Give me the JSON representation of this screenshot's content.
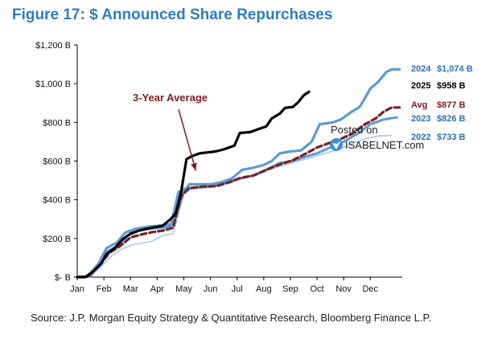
{
  "title": "Figure 17: $ Announced Share Repurchases",
  "source": "Source: J.P. Morgan Equity Strategy & Quantitative Research, Bloomberg Finance L.P.",
  "watermark": {
    "line1": "Posted on",
    "line2": "ISABELNET.com"
  },
  "colors": {
    "y2022": "#a9cfee",
    "y2023": "#5b9bd5",
    "y2024": "#5b9bd5",
    "y2025": "#000000",
    "avg": "#7b2020",
    "label_blue": "#2f6fb5",
    "annotation": "#7b2020",
    "axis": "#000000"
  },
  "chart_data": {
    "type": "line",
    "title": "Figure 17: $ Announced Share Repurchases",
    "xlabel": "",
    "ylabel": "",
    "x_ticks": [
      "Jan",
      "Feb",
      "Mar",
      "Apr",
      "May",
      "Jun",
      "Jul",
      "Aug",
      "Sep",
      "Oct",
      "Nov",
      "Dec"
    ],
    "y_ticks": [
      "$- B",
      "$200 B",
      "$400 B",
      "$600 B",
      "$800 B",
      "$1,000 B",
      "$1,200 B"
    ],
    "xlim": [
      0,
      12.2
    ],
    "ylim": [
      0,
      1200
    ],
    "grid": false,
    "annotation": {
      "text": "3-Year Average",
      "arrow_to": [
        4.45,
        550
      ]
    },
    "series": [
      {
        "key": "y2022",
        "name": "2022",
        "year": "2022",
        "value_label": "$733 B",
        "style": "thin",
        "points": [
          [
            0,
            0
          ],
          [
            0.4,
            2
          ],
          [
            0.8,
            40
          ],
          [
            1.2,
            100
          ],
          [
            1.6,
            140
          ],
          [
            2.0,
            165
          ],
          [
            2.4,
            175
          ],
          [
            2.8,
            185
          ],
          [
            3.2,
            215
          ],
          [
            3.6,
            225
          ],
          [
            4.0,
            430
          ],
          [
            4.3,
            455
          ],
          [
            4.8,
            460
          ],
          [
            5.3,
            470
          ],
          [
            5.8,
            490
          ],
          [
            6.2,
            510
          ],
          [
            6.8,
            530
          ],
          [
            7.3,
            560
          ],
          [
            7.8,
            580
          ],
          [
            8.3,
            600
          ],
          [
            8.8,
            620
          ],
          [
            9.3,
            640
          ],
          [
            9.8,
            660
          ],
          [
            10.3,
            690
          ],
          [
            10.8,
            715
          ],
          [
            11.3,
            730
          ],
          [
            11.8,
            733
          ]
        ]
      },
      {
        "key": "y2023",
        "name": "2023",
        "year": "2023",
        "value_label": "$826 B",
        "style": "normal",
        "points": [
          [
            0,
            0
          ],
          [
            0.5,
            5
          ],
          [
            0.8,
            60
          ],
          [
            1.1,
            130
          ],
          [
            1.5,
            160
          ],
          [
            1.9,
            215
          ],
          [
            2.3,
            240
          ],
          [
            2.7,
            250
          ],
          [
            3.1,
            255
          ],
          [
            3.5,
            260
          ],
          [
            3.8,
            440
          ],
          [
            4.1,
            460
          ],
          [
            4.6,
            465
          ],
          [
            5.1,
            475
          ],
          [
            5.6,
            490
          ],
          [
            6.1,
            510
          ],
          [
            6.6,
            525
          ],
          [
            7.1,
            555
          ],
          [
            7.6,
            590
          ],
          [
            8.1,
            600
          ],
          [
            8.5,
            620
          ],
          [
            9.0,
            640
          ],
          [
            9.5,
            670
          ],
          [
            10.0,
            700
          ],
          [
            10.5,
            740
          ],
          [
            11.0,
            790
          ],
          [
            11.5,
            815
          ],
          [
            12.0,
            826
          ]
        ]
      },
      {
        "key": "y2024",
        "name": "2024",
        "year": "2024",
        "value_label": "$1,074 B",
        "style": "thick",
        "points": [
          [
            0,
            0
          ],
          [
            0.4,
            5
          ],
          [
            0.8,
            70
          ],
          [
            1.1,
            150
          ],
          [
            1.5,
            180
          ],
          [
            1.8,
            230
          ],
          [
            2.2,
            250
          ],
          [
            2.6,
            260
          ],
          [
            3.0,
            265
          ],
          [
            3.3,
            270
          ],
          [
            3.6,
            275
          ],
          [
            4.0,
            440
          ],
          [
            4.2,
            480
          ],
          [
            4.6,
            480
          ],
          [
            5.0,
            480
          ],
          [
            5.4,
            490
          ],
          [
            5.8,
            510
          ],
          [
            6.2,
            555
          ],
          [
            6.6,
            565
          ],
          [
            7.0,
            580
          ],
          [
            7.3,
            600
          ],
          [
            7.6,
            640
          ],
          [
            8.0,
            650
          ],
          [
            8.4,
            655
          ],
          [
            8.8,
            700
          ],
          [
            9.1,
            790
          ],
          [
            9.6,
            800
          ],
          [
            9.9,
            815
          ],
          [
            10.3,
            855
          ],
          [
            10.6,
            880
          ],
          [
            10.8,
            925
          ],
          [
            11.0,
            975
          ],
          [
            11.3,
            1010
          ],
          [
            11.6,
            1060
          ],
          [
            11.8,
            1074
          ],
          [
            12.1,
            1074
          ]
        ]
      },
      {
        "key": "y2025",
        "name": "2025",
        "year": "2025",
        "value_label": "$958 B",
        "style": "thick",
        "points": [
          [
            0,
            0
          ],
          [
            0.3,
            0
          ],
          [
            0.6,
            30
          ],
          [
            0.9,
            70
          ],
          [
            1.1,
            120
          ],
          [
            1.4,
            150
          ],
          [
            1.7,
            195
          ],
          [
            2.0,
            225
          ],
          [
            2.3,
            240
          ],
          [
            2.6,
            250
          ],
          [
            2.9,
            258
          ],
          [
            3.2,
            265
          ],
          [
            3.5,
            300
          ],
          [
            3.7,
            330
          ],
          [
            3.9,
            440
          ],
          [
            4.1,
            610
          ],
          [
            4.3,
            625
          ],
          [
            4.6,
            640
          ],
          [
            4.9,
            645
          ],
          [
            5.2,
            650
          ],
          [
            5.5,
            660
          ],
          [
            5.9,
            680
          ],
          [
            6.1,
            745
          ],
          [
            6.5,
            750
          ],
          [
            6.8,
            765
          ],
          [
            7.1,
            780
          ],
          [
            7.3,
            820
          ],
          [
            7.6,
            845
          ],
          [
            7.8,
            875
          ],
          [
            8.1,
            880
          ],
          [
            8.3,
            905
          ],
          [
            8.5,
            940
          ],
          [
            8.7,
            958
          ]
        ]
      },
      {
        "key": "avg",
        "name": "Avg",
        "year": "Avg",
        "value_label": "$877 B",
        "style": "dashed",
        "points": [
          [
            0,
            0
          ],
          [
            0.4,
            3
          ],
          [
            0.8,
            55
          ],
          [
            1.2,
            125
          ],
          [
            1.6,
            160
          ],
          [
            2.0,
            205
          ],
          [
            2.4,
            220
          ],
          [
            2.8,
            232
          ],
          [
            3.2,
            240
          ],
          [
            3.6,
            255
          ],
          [
            3.9,
            420
          ],
          [
            4.2,
            460
          ],
          [
            4.7,
            468
          ],
          [
            5.2,
            470
          ],
          [
            5.7,
            490
          ],
          [
            6.1,
            512
          ],
          [
            6.6,
            525
          ],
          [
            7.1,
            555
          ],
          [
            7.6,
            582
          ],
          [
            8.1,
            605
          ],
          [
            8.6,
            640
          ],
          [
            9.0,
            670
          ],
          [
            9.4,
            690
          ],
          [
            9.9,
            715
          ],
          [
            10.3,
            740
          ],
          [
            10.8,
            790
          ],
          [
            11.2,
            820
          ],
          [
            11.5,
            855
          ],
          [
            11.8,
            877
          ],
          [
            12.1,
            877
          ]
        ]
      }
    ]
  }
}
